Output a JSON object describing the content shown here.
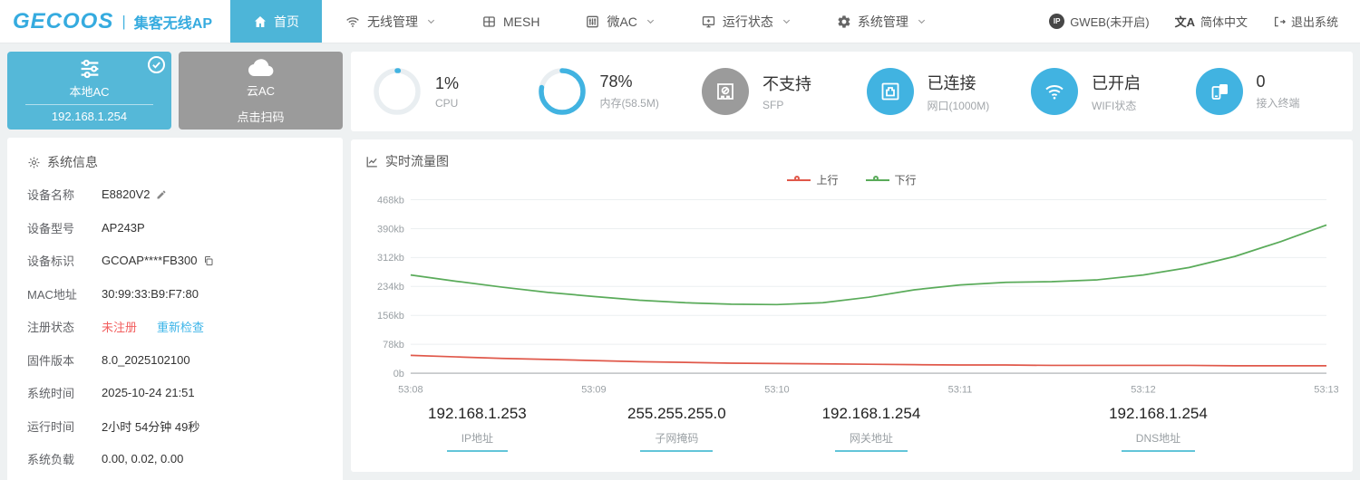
{
  "brand": {
    "logo": "GECOOS",
    "separator": "|",
    "product": "集客无线AP"
  },
  "nav": {
    "items": [
      {
        "label": "首页",
        "active": true
      },
      {
        "label": "无线管理",
        "dropdown": true
      },
      {
        "label": "MESH",
        "dropdown": false
      },
      {
        "label": "微AC",
        "dropdown": true
      },
      {
        "label": "运行状态",
        "dropdown": true
      },
      {
        "label": "系统管理",
        "dropdown": true
      }
    ]
  },
  "topright": {
    "gweb_badge": "IP",
    "gweb": "GWEB(未开启)",
    "lang_glyph": "文A",
    "lang": "简体中文",
    "logout": "退出系统"
  },
  "ac_cards": {
    "local": {
      "title": "本地AC",
      "subtitle": "192.168.1.254",
      "selected": true
    },
    "cloud": {
      "title": "云AC",
      "subtitle": "点击扫码"
    }
  },
  "status": {
    "items": [
      {
        "value": "1%",
        "label": "CPU",
        "percent": 1
      },
      {
        "value": "78%",
        "label": "内存(58.5M)",
        "percent": 78
      },
      {
        "value": "不支持",
        "label": "SFP"
      },
      {
        "value": "已连接",
        "label": "网口(1000M)"
      },
      {
        "value": "已开启",
        "label": "WIFI状态"
      },
      {
        "value": "0",
        "label": "接入终端"
      }
    ]
  },
  "sysinfo": {
    "title": "系统信息",
    "rows": [
      {
        "label": "设备名称",
        "value": "E8820V2"
      },
      {
        "label": "设备型号",
        "value": "AP243P"
      },
      {
        "label": "设备标识",
        "value": "GCOAP****FB300"
      },
      {
        "label": "MAC地址",
        "value": "30:99:33:B9:F7:80"
      },
      {
        "label": "注册状态",
        "value": "未注册",
        "link": "重新检查"
      },
      {
        "label": "固件版本",
        "value": "8.0_2025102100"
      },
      {
        "label": "系统时间",
        "value": "2025-10-24 21:51"
      },
      {
        "label": "运行时间",
        "value": "2小时 54分钟 49秒"
      },
      {
        "label": "系统负载",
        "value": "0.00, 0.02, 0.00"
      }
    ]
  },
  "chart_data": {
    "type": "line",
    "title": "实时流量图",
    "legend_entries": [
      "上行",
      "下行"
    ],
    "legend_position": "top-center",
    "grid": true,
    "y_unit": "kb",
    "ylim": [
      0,
      468
    ],
    "y_ticks": [
      {
        "label": "468kb",
        "value": 468
      },
      {
        "label": "390kb",
        "value": 390
      },
      {
        "label": "312kb",
        "value": 312
      },
      {
        "label": "234kb",
        "value": 234
      },
      {
        "label": "156kb",
        "value": 156
      },
      {
        "label": "78kb",
        "value": 78
      },
      {
        "label": "0b",
        "value": 0
      }
    ],
    "x_ticks": [
      "53:08",
      "53:09",
      "53:10",
      "53:11",
      "53:12",
      "53:13"
    ],
    "x_range": [
      8,
      13
    ],
    "x_minutes": [
      8,
      8.25,
      8.5,
      8.75,
      9,
      9.25,
      9.5,
      9.75,
      10,
      10.25,
      10.5,
      10.75,
      11,
      11.25,
      11.5,
      11.75,
      12,
      12.25,
      12.5,
      12.75,
      13
    ],
    "series": [
      {
        "name": "上行",
        "color": "#e0584a",
        "values": [
          48,
          44,
          40,
          37,
          34,
          31,
          29,
          27,
          26,
          25,
          24,
          23,
          22,
          22,
          21,
          21,
          21,
          21,
          20,
          20,
          20
        ]
      },
      {
        "name": "下行",
        "color": "#5aab5a",
        "values": [
          265,
          248,
          232,
          218,
          207,
          197,
          190,
          186,
          185,
          190,
          205,
          225,
          238,
          245,
          247,
          252,
          265,
          285,
          315,
          355,
          400
        ]
      }
    ]
  },
  "network": {
    "items": [
      {
        "value": "192.168.1.253",
        "label": "IP地址"
      },
      {
        "value": "255.255.255.0",
        "label": "子网掩码"
      },
      {
        "value": "192.168.1.254",
        "label": "网关地址"
      },
      {
        "value": "192.168.1.254",
        "label": "DNS地址"
      }
    ]
  },
  "colors": {
    "accent_blue": "#4db5d8",
    "circle_blue": "#41b3e1",
    "card_gray": "#9b9b9b",
    "chart_red": "#e0584a",
    "chart_green": "#5aab5a",
    "link_blue": "#3cb4e8",
    "error_red": "#f25f5f",
    "underline_teal": "#62c5d9"
  }
}
